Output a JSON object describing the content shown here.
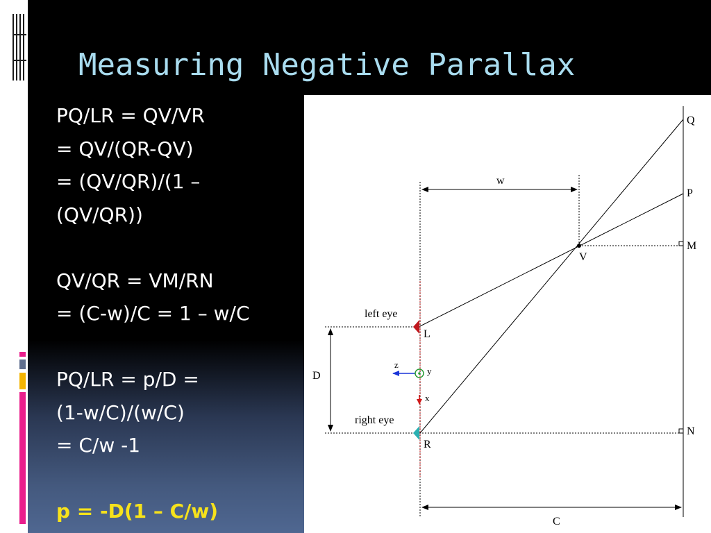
{
  "slide": {
    "title": "Measuring Negative Parallax",
    "equations": [
      "PQ/LR = QV/VR",
      "= QV/(QR-QV)",
      "= (QV/QR)/(1 –",
      "(QV/QR))",
      "",
      "QV/QR = VM/RN",
      "= (C-w)/C = 1 – w/C",
      "",
      "PQ/LR = p/D =",
      "(1-w/C)/(w/C)",
      "= C/w -1",
      ""
    ],
    "result": "p = -D(1 – C/w)"
  },
  "diagram": {
    "labels": {
      "Q": "Q",
      "P": "P",
      "M": "M",
      "V": "V",
      "L": "L",
      "R": "R",
      "N": "N",
      "w": "w",
      "C": "C",
      "D": "D",
      "left_eye": "left eye",
      "right_eye": "right eye",
      "axis_z": "z",
      "axis_y": "y",
      "axis_x": "x"
    },
    "colors": {
      "left_eye_marker": "#c0181e",
      "right_eye_marker": "#2bb0b2",
      "axis_z": "#1a35d8",
      "axis_y": "#2a9a35",
      "axis_x": "#d01a1a"
    }
  },
  "decor": {
    "bar_colors": [
      "#e91e8c",
      "#f4b400",
      "#5f6e8e"
    ]
  }
}
